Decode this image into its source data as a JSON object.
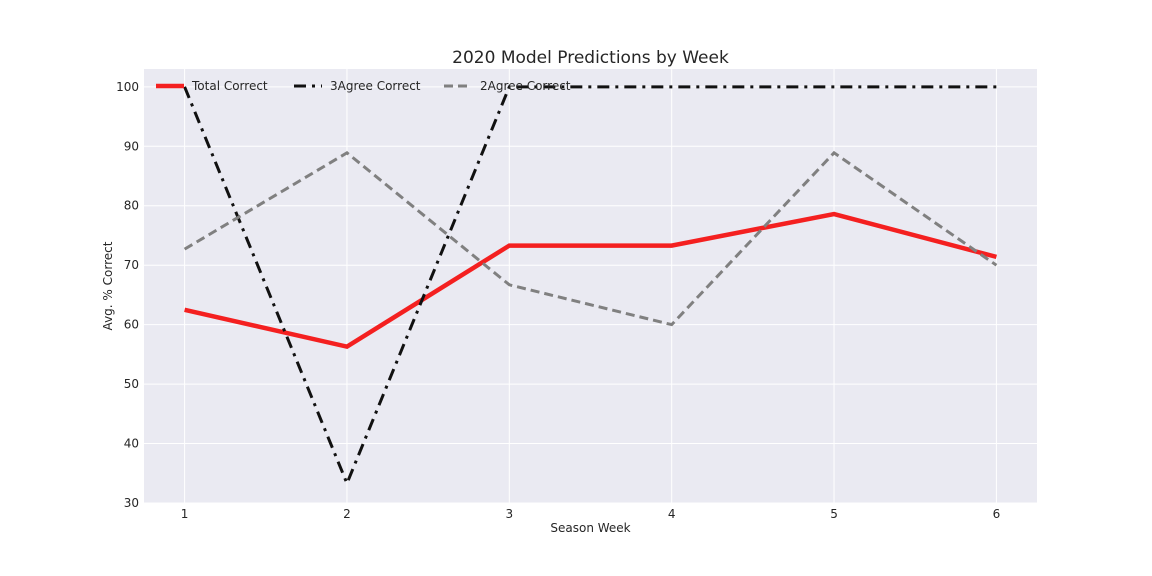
{
  "chart_data": {
    "type": "line",
    "title": "2020 Model Predictions by Week",
    "xlabel": "Season Week",
    "ylabel": "Avg. % Correct",
    "x": [
      1,
      2,
      3,
      4,
      5,
      6
    ],
    "xlim": [
      0.75,
      6.25
    ],
    "ylim": [
      30,
      103
    ],
    "xticks": [
      1,
      2,
      3,
      4,
      5,
      6
    ],
    "yticks": [
      30,
      40,
      50,
      60,
      70,
      80,
      90,
      100
    ],
    "grid": true,
    "legend_position": "top-left",
    "legend_columns": 3,
    "series": [
      {
        "name": "Total Correct",
        "values": [
          62.5,
          56.3,
          73.3,
          73.3,
          78.6,
          71.4
        ],
        "color": "#f42020",
        "style": "solid"
      },
      {
        "name": "3Agree Correct",
        "values": [
          100,
          33.3,
          100,
          100,
          100,
          100
        ],
        "color": "#111111",
        "style": "dashdot"
      },
      {
        "name": "2Agree Correct",
        "values": [
          72.7,
          88.9,
          66.7,
          60.0,
          88.9,
          70.0
        ],
        "color": "#808080",
        "style": "dashed"
      }
    ]
  }
}
